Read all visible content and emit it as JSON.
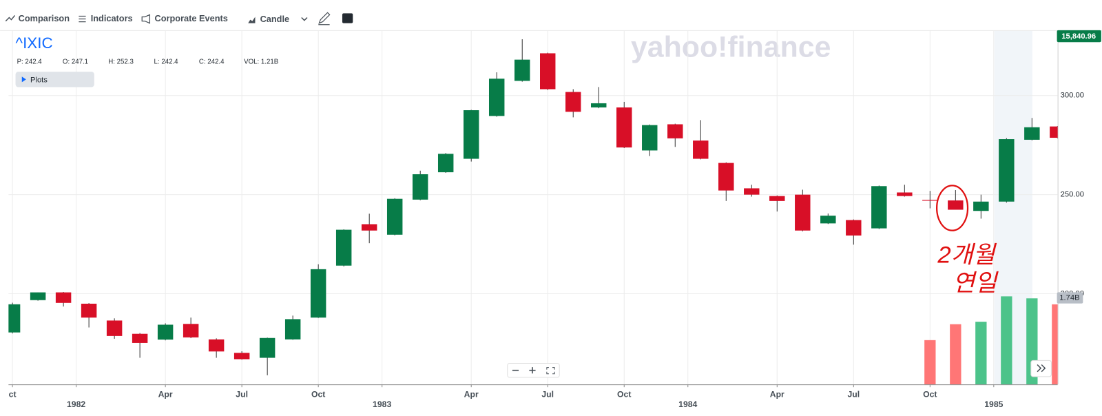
{
  "toolbar": {
    "comparison": "Comparison",
    "indicators": "Indicators",
    "events": "Corporate Events",
    "chart_style": "Candle"
  },
  "chart_data": {
    "type": "candlestick",
    "title": "^IXIC",
    "ohlc_legend": [
      "P: 242.4",
      "O: 247.1",
      "H: 252.3",
      "L: 242.4",
      "C: 242.4",
      "VOL: 1.21B"
    ],
    "plots_button": "Plots",
    "watermark": "yahoo!finance",
    "current_price_label": "15,840.96",
    "annotation_lines": [
      "2개월",
      "연일"
    ],
    "up_color": "#077c48",
    "down_color": "#d80f27",
    "volume_up_color": "#4cc38a",
    "volume_down_color": "#ff7676",
    "x": [
      0,
      1,
      2,
      3,
      4,
      5,
      6,
      7,
      8,
      9,
      10,
      11,
      12,
      13,
      14,
      15,
      16,
      17,
      18,
      19,
      20,
      21,
      22,
      23,
      24,
      25,
      26,
      27,
      28,
      29,
      30,
      31,
      32,
      33,
      34,
      35,
      36,
      37,
      38,
      39,
      40,
      41
    ],
    "open": [
      180.5,
      196.8,
      200.7,
      195.0,
      186.5,
      179.8,
      176.9,
      184.8,
      177.0,
      170.2,
      167.7,
      177.0,
      188.0,
      214.2,
      235.1,
      229.8,
      247.5,
      261.3,
      268.1,
      289.7,
      307.4,
      321.3,
      301.8,
      294.0,
      294.0,
      272.3,
      285.5,
      277.3,
      266.0,
      253.2,
      249.3,
      250.0,
      235.5,
      237.2,
      233.0,
      251.1,
      247.4,
      247.1,
      241.8,
      246.5,
      277.7,
      284.4
    ],
    "high": [
      195.5,
      200.7,
      200.9,
      195.3,
      187.6,
      180.2,
      185.1,
      188.0,
      177.5,
      171.0,
      177.9,
      189.0,
      214.9,
      232.5,
      240.4,
      248.2,
      262.1,
      271.0,
      292.8,
      311.7,
      328.4,
      321.6,
      303.2,
      304.3,
      296.8,
      285.4,
      285.8,
      287.6,
      266.3,
      255.0,
      249.6,
      252.5,
      240.5,
      237.5,
      254.6,
      255.0,
      251.9,
      252.3,
      250.0,
      278.5,
      288.7,
      284.6
    ],
    "low": [
      180.0,
      196.5,
      193.6,
      183.0,
      177.3,
      167.7,
      176.5,
      177.6,
      167.7,
      166.8,
      158.9,
      176.8,
      187.8,
      213.8,
      225.5,
      229.5,
      247.2,
      261.0,
      266.7,
      289.3,
      307.0,
      302.8,
      289.0,
      293.6,
      273.5,
      269.5,
      274.1,
      267.8,
      246.8,
      249.0,
      241.5,
      231.5,
      235.2,
      224.8,
      232.7,
      249.0,
      243.1,
      242.4,
      237.9,
      246.0,
      277.4,
      278.4
    ],
    "close": [
      194.7,
      200.7,
      195.4,
      188.0,
      178.7,
      175.2,
      184.4,
      178.0,
      170.9,
      167.0,
      177.7,
      187.2,
      212.4,
      232.3,
      231.9,
      247.9,
      260.3,
      270.6,
      292.6,
      308.5,
      318.1,
      303.2,
      291.8,
      296.1,
      273.8,
      285.1,
      278.4,
      268.1,
      252.1,
      250.0,
      246.8,
      231.9,
      239.4,
      229.4,
      254.3,
      249.3,
      247.2,
      242.4,
      246.5,
      278.0,
      284.0,
      278.7
    ],
    "volume": [
      null,
      null,
      null,
      null,
      null,
      null,
      null,
      null,
      null,
      null,
      null,
      null,
      null,
      null,
      null,
      null,
      null,
      null,
      null,
      null,
      null,
      null,
      null,
      null,
      null,
      null,
      null,
      null,
      null,
      null,
      null,
      null,
      null,
      null,
      null,
      null,
      0.89,
      1.21,
      1.26,
      1.77,
      1.73,
      1.61
    ],
    "xlim": [
      -0.1,
      41.2
    ],
    "xticks": [
      {
        "value": 0,
        "label": "ct"
      },
      {
        "value": 2.5,
        "label": "1982"
      },
      {
        "value": 6,
        "label": "Apr"
      },
      {
        "value": 9,
        "label": "Jul"
      },
      {
        "value": 12,
        "label": "Oct"
      },
      {
        "value": 14.5,
        "label": "1983"
      },
      {
        "value": 18,
        "label": "Apr"
      },
      {
        "value": 21,
        "label": "Jul"
      },
      {
        "value": 24,
        "label": "Oct"
      },
      {
        "value": 26.5,
        "label": "1984"
      },
      {
        "value": 30,
        "label": "Apr"
      },
      {
        "value": 33,
        "label": "Jul"
      },
      {
        "value": 36,
        "label": "Oct"
      },
      {
        "value": 38.5,
        "label": "1985"
      }
    ],
    "ylim": [
      154.3,
      332.6
    ],
    "yticks": [
      {
        "value": 200,
        "label": "200.00"
      },
      {
        "value": 250,
        "label": "250.00"
      },
      {
        "value": 300,
        "label": "300.00"
      }
    ],
    "vlim": [
      0,
      7.11
    ],
    "volume_ticks": [
      {
        "value": 1.74,
        "label": "1.74B"
      }
    ],
    "grid": true
  }
}
